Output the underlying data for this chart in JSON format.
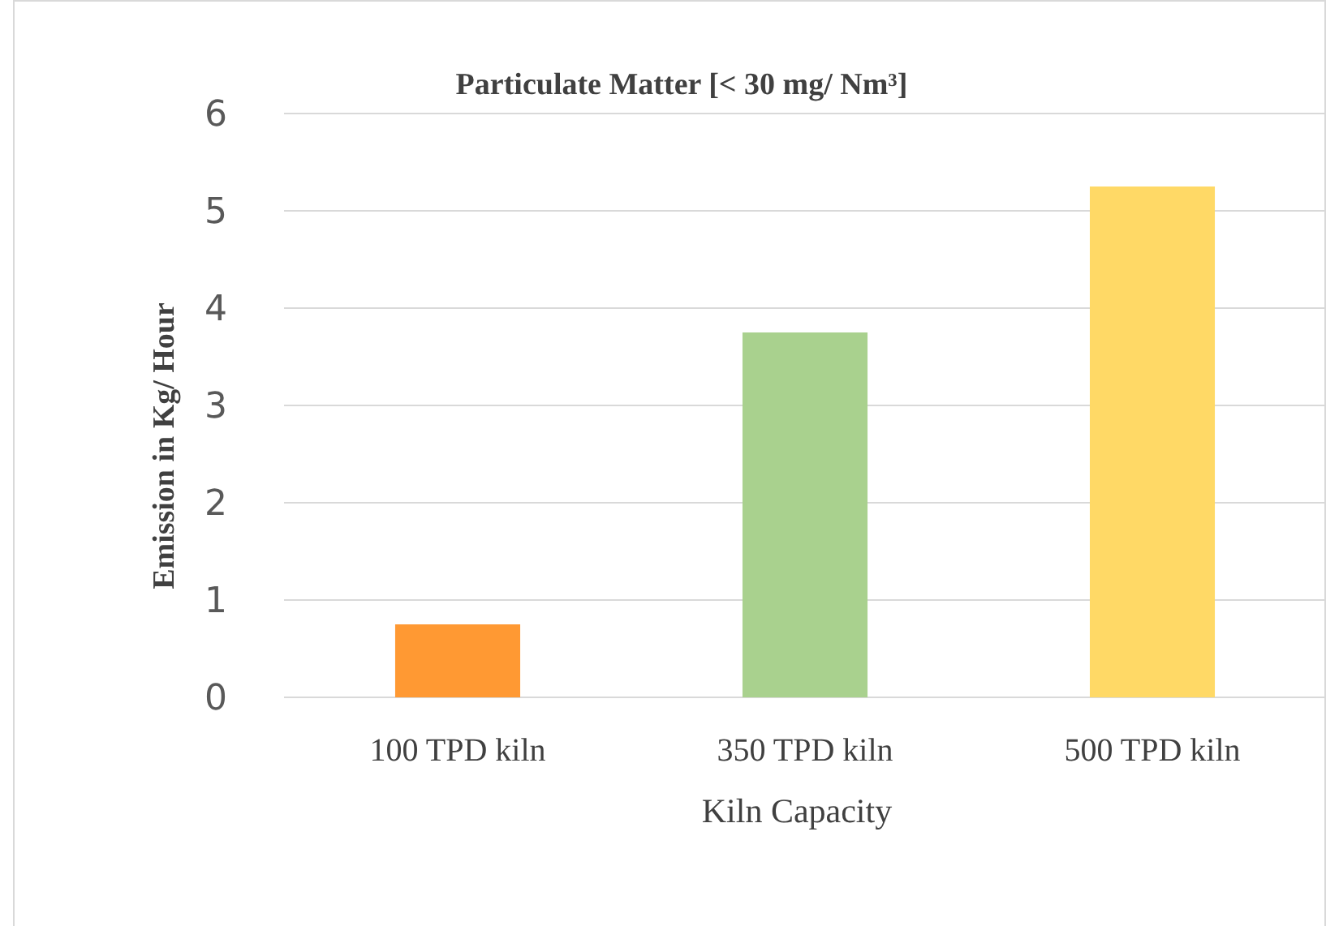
{
  "chart_data": {
    "type": "bar",
    "title": "Particulate Matter [< 30 mg/ Nm³]",
    "xlabel": "Kiln Capacity",
    "ylabel": "Emission in Kg/ Hour",
    "categories": [
      "100 TPD kiln",
      "350 TPD kiln",
      "500 TPD kiln"
    ],
    "values": [
      0.75,
      3.75,
      5.25
    ],
    "colors": [
      "#ff9933",
      "#a9d18e",
      "#ffd966"
    ],
    "ylim": [
      0,
      6
    ],
    "yticks": [
      0,
      1,
      2,
      3,
      4,
      5,
      6
    ],
    "grid": "y"
  }
}
